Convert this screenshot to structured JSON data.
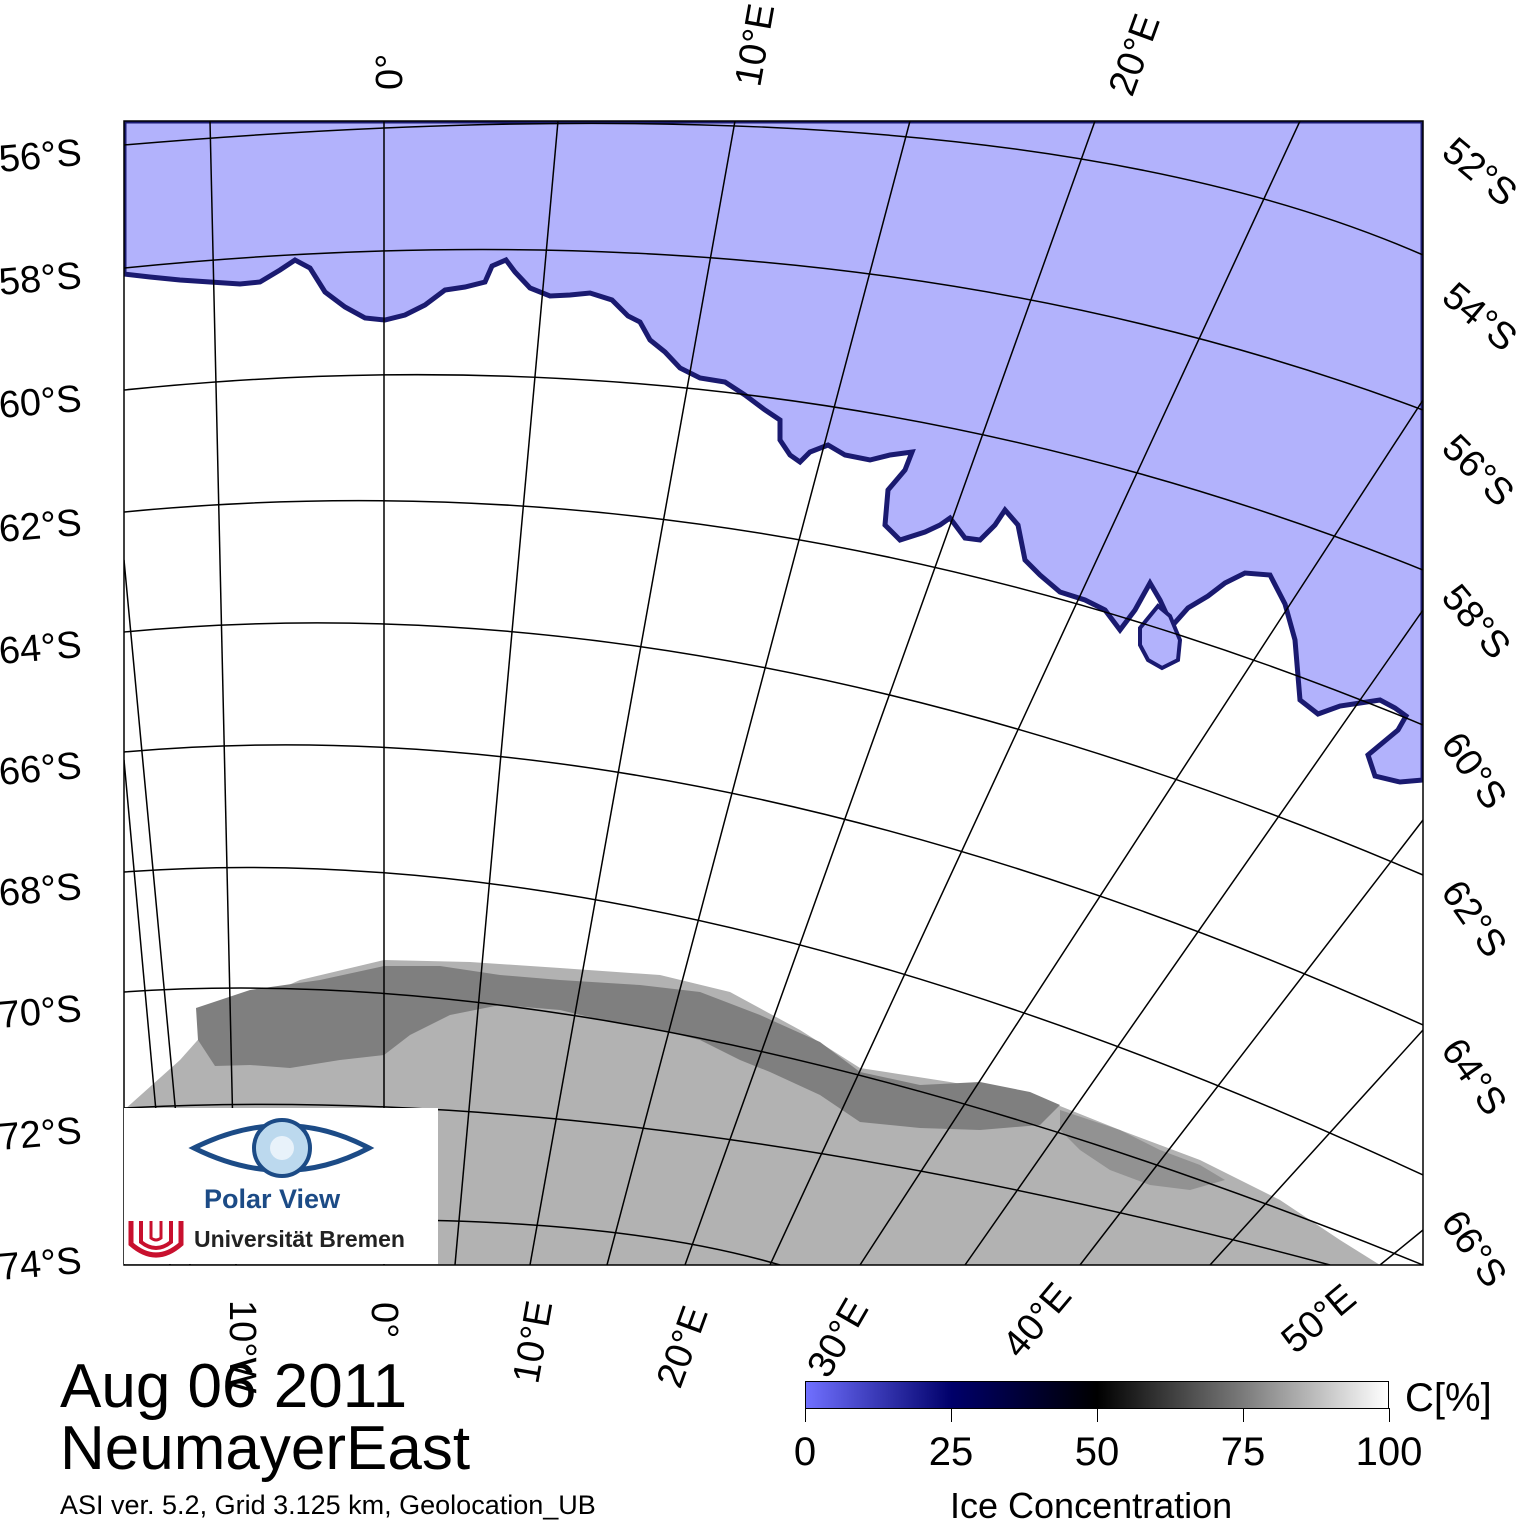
{
  "map": {
    "title": "",
    "top_labels": [
      "0°",
      "10°E",
      "20°E"
    ],
    "left_labels": [
      "56°S",
      "58°S",
      "60°S",
      "62°S",
      "64°S",
      "66°S",
      "68°S",
      "70°S",
      "72°S",
      "74°S"
    ],
    "right_labels": [
      "52°S",
      "54°S",
      "56°S",
      "58°S",
      "60°S",
      "62°S",
      "64°S",
      "66°S"
    ],
    "bottom_labels": [
      "10°W",
      "0°",
      "10°E",
      "20°E",
      "30°E",
      "40°E",
      "50°E"
    ],
    "colors": {
      "open_water": "#b2b2fc",
      "ice_edge": "#1a1a70",
      "sea_ice": "#ffffff",
      "ice_shelf": "#7f7f7f",
      "land": "#b2b2b2",
      "graticule": "#000000"
    }
  },
  "logo": {
    "name": "Polar View",
    "institution": "Universität Bremen"
  },
  "caption": {
    "date": "Aug 06 2011",
    "region": "NeumayerEast",
    "meta": "ASI ver. 5.2,  Grid 3.125 km, Geolocation_UB"
  },
  "colorbar": {
    "ticks": [
      "0",
      "25",
      "50",
      "75",
      "100"
    ],
    "unit": "C[%]",
    "title": "Ice Concentration",
    "gradient": [
      "#7070ff",
      "#00006a",
      "#000000",
      "#7a7a7a",
      "#ffffff"
    ]
  }
}
